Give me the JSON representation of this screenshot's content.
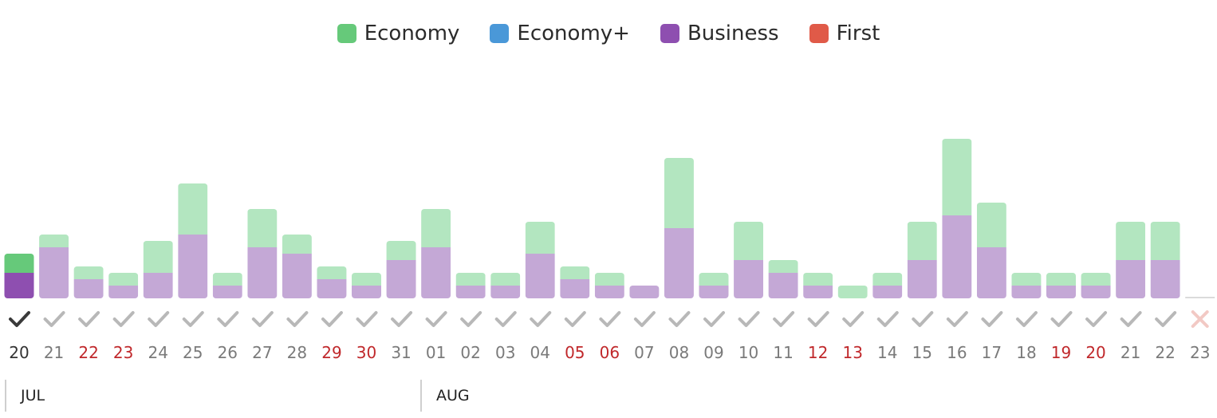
{
  "legend": [
    {
      "label": "Economy",
      "color": "#66c97a"
    },
    {
      "label": "Economy+",
      "color": "#4a98d8"
    },
    {
      "label": "Business",
      "color": "#8e4fb0"
    },
    {
      "label": "First",
      "color": "#e05a48"
    }
  ],
  "months": [
    "JUL",
    "AUG"
  ],
  "colors": {
    "economy_selected": "#66c97a",
    "business_selected": "#8e4fb0",
    "economy": "#b3e6c0",
    "business": "#c4a8d6",
    "weekend_label": "#c0282b",
    "weekday_label": "#7a7a7a",
    "selected_label": "#333333",
    "check_available": "#b8b8b8",
    "check_selected": "#3a3a3a",
    "cross": "#f2c9c4"
  },
  "chart_data": {
    "type": "bar",
    "stacked": true,
    "categories": [
      "20",
      "21",
      "22",
      "23",
      "24",
      "25",
      "26",
      "27",
      "28",
      "29",
      "30",
      "31",
      "01",
      "02",
      "03",
      "04",
      "05",
      "06",
      "07",
      "08",
      "09",
      "10",
      "11",
      "12",
      "13",
      "14",
      "15",
      "16",
      "17",
      "18",
      "19",
      "20",
      "21",
      "22",
      "23"
    ],
    "series": [
      {
        "name": "Business",
        "values": [
          2,
          4,
          1.5,
          1,
          2,
          5,
          1,
          4,
          3.5,
          1.5,
          1,
          3,
          4,
          1,
          1,
          3.5,
          1.5,
          1,
          1,
          5.5,
          1,
          3,
          2,
          1,
          0,
          1,
          3,
          6.5,
          4,
          1,
          1,
          1,
          3,
          3,
          0
        ]
      },
      {
        "name": "Economy",
        "values": [
          1.5,
          1,
          1,
          1,
          2.5,
          4,
          1,
          3,
          1.5,
          1,
          1,
          1.5,
          3,
          1,
          1,
          2.5,
          1,
          1,
          0,
          5.5,
          1,
          3,
          1,
          1,
          1,
          1,
          3,
          6,
          3.5,
          1,
          1,
          1,
          3,
          3,
          0
        ]
      },
      {
        "name": "Economy+",
        "values": [
          0,
          0,
          0,
          0,
          0,
          0,
          0,
          0,
          0,
          0,
          0,
          0,
          0,
          0,
          0,
          0,
          0,
          0,
          0,
          0,
          0,
          0,
          0,
          0,
          0,
          0,
          0,
          0,
          0,
          0,
          0,
          0,
          0,
          0,
          0
        ]
      },
      {
        "name": "First",
        "values": [
          0,
          0,
          0,
          0,
          0,
          0,
          0,
          0,
          0,
          0,
          0,
          0,
          0,
          0,
          0,
          0,
          0,
          0,
          0,
          0,
          0,
          0,
          0,
          0,
          0,
          0,
          0,
          0,
          0,
          0,
          0,
          0,
          0,
          0,
          0
        ]
      }
    ],
    "weekend": [
      false,
      false,
      true,
      true,
      false,
      false,
      false,
      false,
      false,
      true,
      true,
      false,
      false,
      false,
      false,
      false,
      true,
      true,
      false,
      false,
      false,
      false,
      false,
      true,
      true,
      false,
      false,
      false,
      false,
      false,
      true,
      true,
      false,
      false,
      false
    ],
    "availability": [
      "selected",
      "available",
      "available",
      "available",
      "available",
      "available",
      "available",
      "available",
      "available",
      "available",
      "available",
      "available",
      "available",
      "available",
      "available",
      "available",
      "available",
      "available",
      "available",
      "available",
      "available",
      "available",
      "available",
      "available",
      "available",
      "available",
      "available",
      "available",
      "available",
      "available",
      "available",
      "available",
      "available",
      "available",
      "unavailable"
    ],
    "selected_index": 0,
    "legend_position": "top-center",
    "grid": false
  }
}
